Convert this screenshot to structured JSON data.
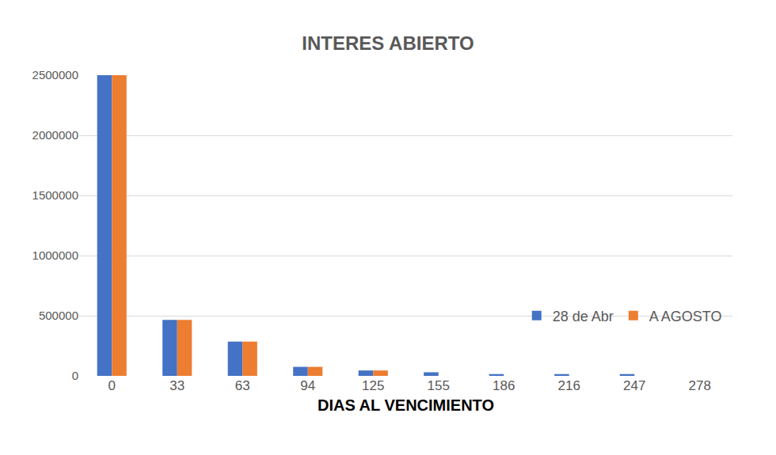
{
  "chart_data": {
    "type": "bar",
    "title": "INTERES ABIERTO",
    "x_label": "DIAS AL VENCIMIENTO",
    "categories": [
      "0",
      "33",
      "63",
      "94",
      "125",
      "155",
      "186",
      "216",
      "247",
      "278"
    ],
    "series": [
      {
        "name": "28 de Abr",
        "color": "#4472c4",
        "values": [
          2500000,
          465000,
          285000,
          75000,
          45000,
          30000,
          15000,
          15000,
          15000,
          0
        ]
      },
      {
        "name": "A AGOSTO",
        "color": "#ed7d31",
        "values": [
          2500000,
          465000,
          285000,
          75000,
          45000,
          0,
          0,
          0,
          0,
          0
        ]
      }
    ],
    "ylim": [
      0,
      2500000
    ],
    "yticks": [
      0,
      500000,
      1000000,
      1500000,
      2000000,
      2500000
    ],
    "grid": true,
    "legend": "right"
  }
}
